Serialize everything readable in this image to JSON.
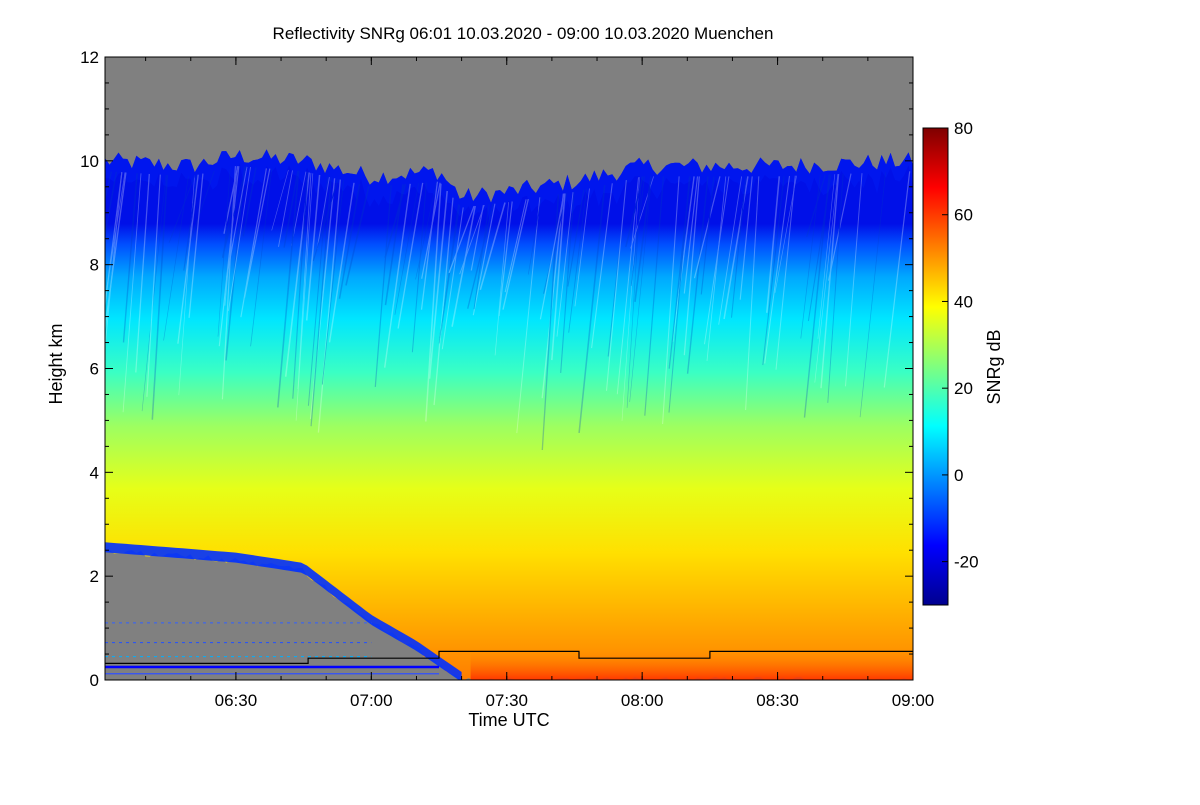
{
  "chart_data": {
    "type": "heatmap",
    "title": "Reflectivity SNRg   06:01 10.03.2020 - 09:00 10.03.2020 Muenchen",
    "xlabel": "Time UTC",
    "ylabel": "Height km",
    "colorbar_label": "SNRg dB",
    "x_range": [
      "06:01",
      "09:00"
    ],
    "x_ticks": [
      "06:30",
      "07:00",
      "07:30",
      "08:00",
      "08:30",
      "09:00"
    ],
    "y_range": [
      0,
      12
    ],
    "y_ticks": [
      "0",
      "2",
      "4",
      "6",
      "8",
      "10",
      "12"
    ],
    "colorbar_range": [
      -30,
      80
    ],
    "colorbar_ticks": [
      "-20",
      "0",
      "20",
      "40",
      "60",
      "80"
    ],
    "colormap": "jet",
    "no_data_color": "#808080",
    "echo_top_km": [
      {
        "time": "06:01",
        "height": 10.0
      },
      {
        "time": "06:20",
        "height": 9.9
      },
      {
        "time": "06:30",
        "height": 10.1
      },
      {
        "time": "06:45",
        "height": 10.0
      },
      {
        "time": "07:00",
        "height": 9.7
      },
      {
        "time": "07:15",
        "height": 9.8
      },
      {
        "time": "07:20",
        "height": 9.3
      },
      {
        "time": "07:30",
        "height": 9.4
      },
      {
        "time": "07:45",
        "height": 9.6
      },
      {
        "time": "08:00",
        "height": 9.9
      },
      {
        "time": "08:15",
        "height": 9.9
      },
      {
        "time": "08:30",
        "height": 9.9
      },
      {
        "time": "09:00",
        "height": 10.0
      }
    ],
    "precip_base_km": [
      {
        "time": "06:01",
        "height": 2.5
      },
      {
        "time": "06:30",
        "height": 2.3
      },
      {
        "time": "06:45",
        "height": 2.1
      },
      {
        "time": "07:00",
        "height": 1.1
      },
      {
        "time": "07:10",
        "height": 0.6
      },
      {
        "time": "07:15",
        "height": 0.3
      },
      {
        "time": "07:20",
        "height": 0.0
      }
    ],
    "mixing_layer_km": [
      {
        "time": "06:01",
        "height": 0.32
      },
      {
        "time": "06:46",
        "height": 0.32
      },
      {
        "time": "06:46",
        "height": 0.42
      },
      {
        "time": "07:15",
        "height": 0.42
      },
      {
        "time": "07:15",
        "height": 0.55
      },
      {
        "time": "07:46",
        "height": 0.55
      },
      {
        "time": "07:46",
        "height": 0.42
      },
      {
        "time": "08:15",
        "height": 0.42
      },
      {
        "time": "08:15",
        "height": 0.55
      },
      {
        "time": "09:00",
        "height": 0.55
      }
    ]
  }
}
